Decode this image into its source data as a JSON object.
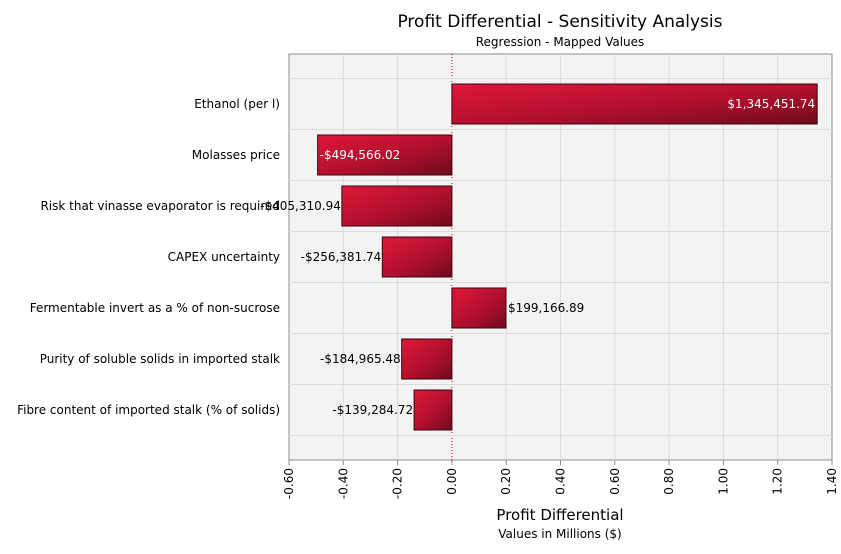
{
  "chart_data": {
    "type": "bar",
    "orientation": "horizontal",
    "title": "Profit Differential - Sensitivity Analysis",
    "subtitle": "Regression - Mapped Values",
    "xlabel": "Profit Differential",
    "xlabel_sub": "Values in Millions ($)",
    "ylabel": "",
    "xlim": [
      -0.6,
      1.4
    ],
    "x_ticks": [
      -0.6,
      -0.4,
      -0.2,
      0.0,
      0.2,
      0.4,
      0.6,
      0.8,
      1.0,
      1.2,
      1.4
    ],
    "x_tick_labels": [
      "-0.60",
      "-0.40",
      "-0.20",
      "0.00",
      "0.20",
      "0.40",
      "0.60",
      "0.80",
      "1.00",
      "1.20",
      "1.40"
    ],
    "grid": true,
    "bar_color": "#c8102e",
    "categories": [
      "Ethanol (per l)",
      "Molasses price",
      "Risk that vinasse evaporator is required",
      "CAPEX uncertainty",
      "Fermentable invert as a % of non-sucrose",
      "Purity of soluble solids in imported stalk",
      "Fibre content of imported stalk (% of solids)"
    ],
    "values": [
      1345451.74,
      -494566.02,
      -405310.94,
      -256381.74,
      199166.89,
      -184965.48,
      -139284.72
    ],
    "value_labels": [
      "$1,345,451.74",
      "-$494,566.02",
      "-$405,310.94",
      "-$256,381.74",
      "$199,166.89",
      "-$184,965.48",
      "-$139,284.72"
    ]
  }
}
